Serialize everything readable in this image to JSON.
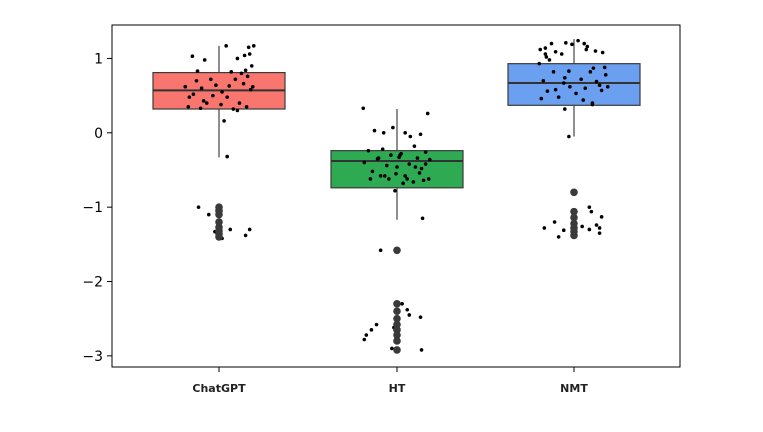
{
  "chart_data": {
    "type": "boxplot",
    "title": "",
    "xlabel": "",
    "ylabel": "",
    "ylim": [
      -3.15,
      1.45
    ],
    "yticks": [
      1,
      0,
      -1,
      -2,
      -3
    ],
    "ytick_labels": [
      "1",
      "0",
      "−1",
      "−2",
      "−3"
    ],
    "categories": [
      "ChatGPT",
      "HT",
      "NMT"
    ],
    "colors": [
      "#f8766d",
      "#2eaa52",
      "#6b9ff0"
    ],
    "box_stats": [
      {
        "whisker_low": -0.33,
        "q1": 0.32,
        "median": 0.57,
        "q3": 0.81,
        "whisker_high": 1.17,
        "outliers": [
          -1.0,
          -1.05,
          -1.1,
          -1.2,
          -1.27,
          -1.32,
          -1.36,
          -1.4
        ]
      },
      {
        "whisker_low": -1.17,
        "q1": -0.74,
        "median": -0.38,
        "q3": -0.24,
        "whisker_high": 0.32,
        "outliers": [
          -1.58,
          -2.3,
          -2.4,
          -2.5,
          -2.58,
          -2.65,
          -2.72,
          -2.8,
          -2.92
        ]
      },
      {
        "whisker_low": -0.05,
        "q1": 0.37,
        "median": 0.67,
        "q3": 0.93,
        "whisker_high": 1.26,
        "outliers": [
          -0.8,
          -1.06,
          -1.14,
          -1.22,
          -1.28,
          -1.33,
          -1.38
        ]
      }
    ],
    "jitter_points": [
      [
        [
          -0.26,
          1.03
        ],
        [
          -0.14,
          0.98
        ],
        [
          0.07,
          1.17
        ],
        [
          0.18,
          1.0
        ],
        [
          0.25,
          1.04
        ],
        [
          0.29,
          1.15
        ],
        [
          0.3,
          1.06
        ],
        [
          0.34,
          1.17
        ],
        [
          -0.33,
          0.62
        ],
        [
          -0.29,
          0.48
        ],
        [
          -0.25,
          0.52
        ],
        [
          -0.21,
          0.83
        ],
        [
          -0.17,
          0.6
        ],
        [
          -0.12,
          0.4
        ],
        [
          -0.08,
          0.72
        ],
        [
          -0.03,
          0.64
        ],
        [
          0.03,
          0.55
        ],
        [
          0.08,
          0.48
        ],
        [
          0.12,
          0.82
        ],
        [
          0.16,
          0.72
        ],
        [
          0.2,
          0.4
        ],
        [
          0.24,
          0.66
        ],
        [
          0.27,
          0.35
        ],
        [
          0.31,
          0.58
        ],
        [
          -0.3,
          0.35
        ],
        [
          -0.22,
          0.7
        ],
        [
          -0.15,
          0.43
        ],
        [
          -0.06,
          0.5
        ],
        [
          0.02,
          0.38
        ],
        [
          0.1,
          0.63
        ],
        [
          0.14,
          0.32
        ],
        [
          0.22,
          0.8
        ],
        [
          0.28,
          0.76
        ],
        [
          0.32,
          0.9
        ],
        [
          0.33,
          0.62
        ],
        [
          -0.18,
          0.33
        ],
        [
          0.05,
          0.16
        ],
        [
          0.08,
          -0.32
        ],
        [
          0.26,
          0.84
        ],
        [
          0.18,
          0.3
        ],
        [
          -0.2,
          -1.0
        ],
        [
          -0.1,
          -1.1
        ],
        [
          0.0,
          -1.05
        ],
        [
          0.11,
          -1.3
        ],
        [
          0.26,
          -1.38
        ],
        [
          0.3,
          -1.3
        ],
        [
          -0.04,
          -1.33
        ],
        [
          0.03,
          -1.42
        ]
      ],
      [
        [
          -0.33,
          0.33
        ],
        [
          -0.22,
          0.03
        ],
        [
          -0.13,
          0.0
        ],
        [
          -0.04,
          0.07
        ],
        [
          0.08,
          0.0
        ],
        [
          0.13,
          -0.05
        ],
        [
          0.23,
          -0.02
        ],
        [
          0.3,
          0.26
        ],
        [
          -0.32,
          -0.4
        ],
        [
          -0.28,
          -0.24
        ],
        [
          -0.24,
          -0.52
        ],
        [
          -0.19,
          -0.35
        ],
        [
          -0.14,
          -0.22
        ],
        [
          -0.1,
          -0.44
        ],
        [
          -0.06,
          -0.3
        ],
        [
          -0.01,
          -0.55
        ],
        [
          0.04,
          -0.28
        ],
        [
          0.08,
          -0.58
        ],
        [
          0.12,
          -0.42
        ],
        [
          0.16,
          -0.66
        ],
        [
          0.2,
          -0.34
        ],
        [
          0.24,
          -0.48
        ],
        [
          0.28,
          -0.26
        ],
        [
          0.32,
          -0.36
        ],
        [
          -0.26,
          -0.62
        ],
        [
          -0.16,
          -0.58
        ],
        [
          -0.08,
          -0.62
        ],
        [
          0.0,
          -0.46
        ],
        [
          0.1,
          -0.62
        ],
        [
          0.18,
          -0.46
        ],
        [
          0.26,
          -0.64
        ],
        [
          0.31,
          -0.62
        ],
        [
          -0.18,
          -0.34
        ],
        [
          0.02,
          -0.33
        ],
        [
          -0.02,
          -0.78
        ],
        [
          0.06,
          -0.68
        ],
        [
          0.22,
          -0.54
        ],
        [
          -0.12,
          -0.58
        ],
        [
          0.17,
          -0.18
        ],
        [
          0.28,
          -0.42
        ],
        [
          0.03,
          -0.3
        ],
        [
          0.25,
          -1.15
        ],
        [
          -0.16,
          -1.58
        ],
        [
          0.05,
          -2.3
        ],
        [
          0.12,
          -2.45
        ],
        [
          0.23,
          -2.48
        ],
        [
          0.1,
          -2.38
        ],
        [
          -0.25,
          -2.65
        ],
        [
          -0.2,
          -2.58
        ],
        [
          -0.3,
          -2.72
        ],
        [
          -0.03,
          -2.62
        ],
        [
          0.0,
          -2.7
        ],
        [
          -0.01,
          -2.75
        ],
        [
          -0.32,
          -2.78
        ],
        [
          0.24,
          -2.92
        ],
        [
          -0.05,
          -2.9
        ]
      ],
      [
        [
          -0.33,
          1.12
        ],
        [
          -0.22,
          1.2
        ],
        [
          -0.18,
          1.09
        ],
        [
          -0.08,
          1.21
        ],
        [
          0.1,
          1.2
        ],
        [
          0.13,
          1.16
        ],
        [
          0.21,
          1.1
        ],
        [
          0.28,
          1.08
        ],
        [
          -0.34,
          0.93
        ],
        [
          -0.27,
          1.02
        ],
        [
          -0.24,
          0.98
        ],
        [
          -0.12,
          1.06
        ],
        [
          -0.02,
          1.19
        ],
        [
          0.04,
          1.24
        ],
        [
          0.12,
          1.12
        ],
        [
          0.19,
          0.87
        ],
        [
          -0.3,
          0.7
        ],
        [
          -0.26,
          0.56
        ],
        [
          -0.2,
          0.82
        ],
        [
          -0.15,
          0.48
        ],
        [
          -0.09,
          0.74
        ],
        [
          -0.04,
          0.62
        ],
        [
          0.02,
          0.53
        ],
        [
          0.07,
          0.72
        ],
        [
          0.11,
          0.6
        ],
        [
          0.16,
          0.82
        ],
        [
          0.22,
          0.69
        ],
        [
          0.27,
          0.57
        ],
        [
          0.31,
          0.78
        ],
        [
          0.33,
          0.62
        ],
        [
          -0.32,
          0.46
        ],
        [
          -0.18,
          0.58
        ],
        [
          -0.05,
          0.83
        ],
        [
          0.09,
          0.44
        ],
        [
          0.18,
          0.4
        ],
        [
          0.25,
          0.64
        ],
        [
          0.3,
          0.88
        ],
        [
          -0.09,
          0.32
        ],
        [
          0.18,
          0.38
        ],
        [
          -0.28,
          1.06
        ],
        [
          -0.28,
          1.14
        ],
        [
          -0.1,
          0.67
        ],
        [
          -0.05,
          -0.05
        ],
        [
          0.15,
          -1.0
        ],
        [
          0.27,
          -1.13
        ],
        [
          0.17,
          -1.06
        ],
        [
          0.22,
          -1.24
        ],
        [
          0.25,
          -1.28
        ],
        [
          -0.29,
          -1.28
        ],
        [
          -0.19,
          -1.2
        ],
        [
          -0.1,
          -1.31
        ],
        [
          -0.15,
          -1.4
        ],
        [
          0.08,
          -1.26
        ],
        [
          0.15,
          -1.3
        ],
        [
          0.25,
          -1.35
        ]
      ]
    ]
  }
}
